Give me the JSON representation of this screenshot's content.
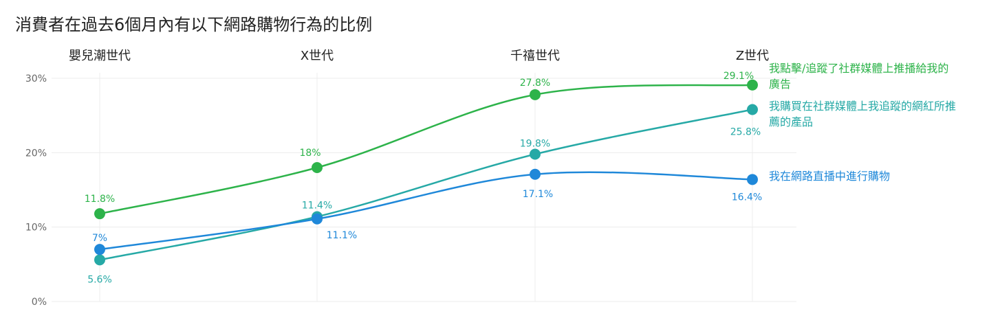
{
  "colors": {
    "green": "#2db34a",
    "teal": "#26a9a6",
    "blue": "#1f88d9",
    "grid": "#ececec",
    "tick": "#666666",
    "text": "#222222"
  },
  "chart_data": {
    "type": "line",
    "title": "消費者在過去6個月內有以下網路購物行為的比例",
    "categories": [
      "嬰兒潮世代",
      "X世代",
      "千禧世代",
      "Z世代"
    ],
    "y_ticks": [
      "0%",
      "10%",
      "20%",
      "30%"
    ],
    "ylim": [
      0,
      30
    ],
    "grid": true,
    "legend_placement": "right, inline at line ends",
    "series": [
      {
        "name": "我點擊/追蹤了社群媒體上推播給我的廣告",
        "name_lines": [
          "我點擊/追蹤了社群媒體上推播給我的",
          "廣告"
        ],
        "color": "#2db34a",
        "values": [
          11.8,
          18,
          27.8,
          29.1
        ],
        "labels": [
          "11.8%",
          "18%",
          "27.8%",
          "29.1%"
        ]
      },
      {
        "name": "我購買在社群媒體上我追蹤的網紅所推薦的產品",
        "name_lines": [
          "我購買在社群媒體上我追蹤的網紅所推",
          "薦的產品"
        ],
        "color": "#26a9a6",
        "values": [
          5.6,
          11.4,
          19.8,
          25.8
        ],
        "labels": [
          "5.6%",
          "11.4%",
          "19.8%",
          "25.8%"
        ]
      },
      {
        "name": "我在網路直播中進行購物",
        "name_lines": [
          "我在網路直播中進行購物"
        ],
        "color": "#1f88d9",
        "values": [
          7,
          11.1,
          17.1,
          16.4
        ],
        "labels": [
          "7%",
          "11.1%",
          "17.1%",
          "16.4%"
        ]
      }
    ]
  }
}
